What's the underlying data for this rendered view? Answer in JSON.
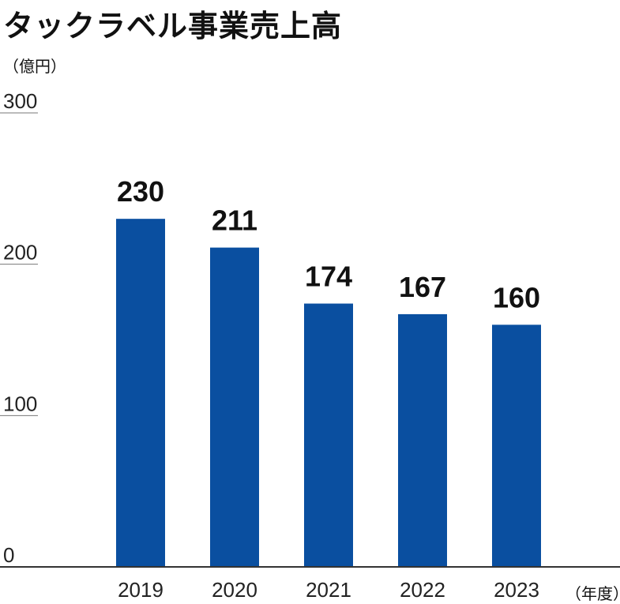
{
  "chart_data": {
    "type": "bar",
    "title": "タックラベル事業売上高",
    "ylabel": "（億円）",
    "xlabel": "（年度）",
    "categories": [
      "2019",
      "2020",
      "2021",
      "2022",
      "2023"
    ],
    "values": [
      230,
      211,
      174,
      167,
      160
    ],
    "ylim": [
      0,
      300
    ],
    "yticks": [
      0,
      100,
      200,
      300
    ],
    "grid": false,
    "legend": "none",
    "bar_color": "#0a4fa0",
    "axis_color": "#333333"
  }
}
